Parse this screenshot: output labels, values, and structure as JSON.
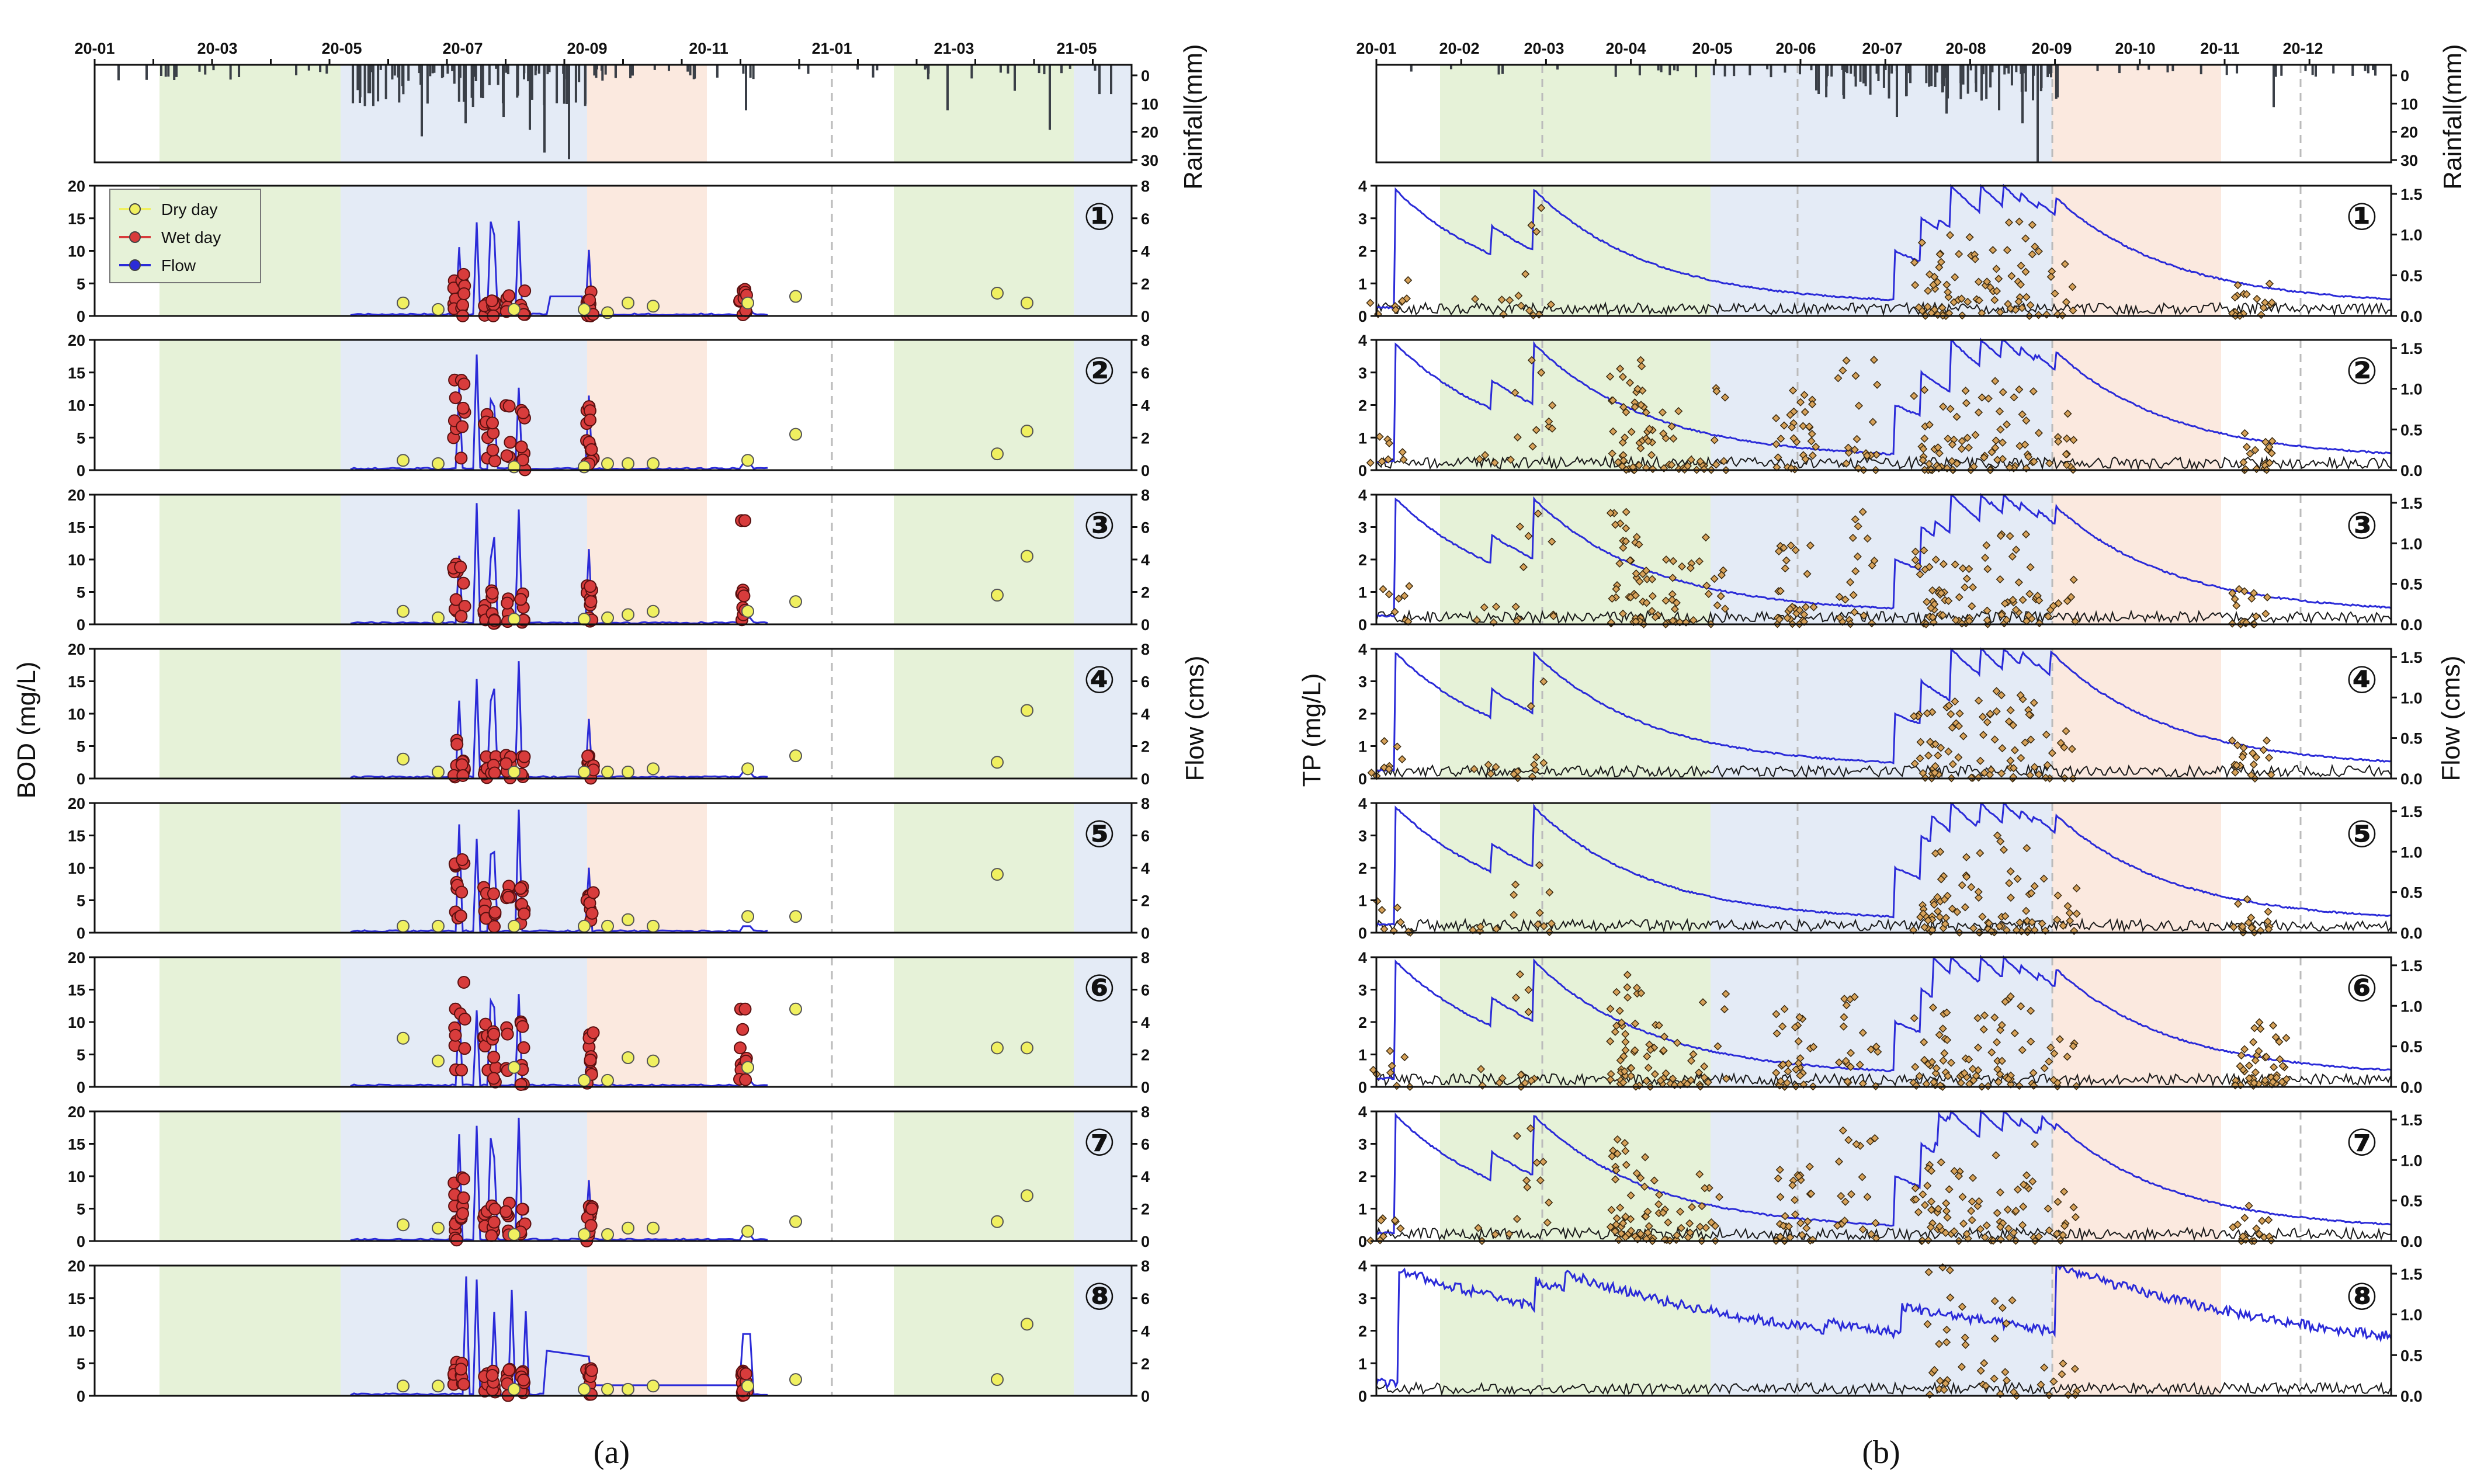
{
  "figure": {
    "captions": [
      "(a)",
      "(b)"
    ],
    "caption_letters": [
      "a",
      "b"
    ]
  },
  "colors": {
    "dry": "#f0f060",
    "wet": "#d83c3c",
    "flow": "#2b2bd8",
    "rain": "#3a3f47",
    "tp_marker": "#d7a25a",
    "season_spring": "#e6f2d8",
    "season_summer": "#e4ebf6",
    "season_autumn": "#fbe9df"
  },
  "chart_data": [
    {
      "panel": "a",
      "type": "scatter",
      "ylabel": "BOD (mg/L)",
      "y2label": "Flow (cms)",
      "rain_label": "Rainfall(mm)",
      "x_ticks": [
        "20-01",
        "20-03",
        "20-05",
        "20-07",
        "20-09",
        "20-11",
        "21-01",
        "21-03",
        "21-05"
      ],
      "rain_ticks": [
        "0",
        "10",
        "20",
        "30"
      ],
      "y_ticks": [
        "0",
        "5",
        "10",
        "15",
        "20"
      ],
      "y2_ticks": [
        "0",
        "2",
        "4",
        "6",
        "8"
      ],
      "ylim": [
        0,
        20
      ],
      "y2lim": [
        0,
        8
      ],
      "rain_ylim": [
        0,
        30
      ],
      "legend": [
        "Dry day",
        "Wet day",
        "Flow"
      ],
      "sites": [
        "①",
        "②",
        "③",
        "④",
        "⑤",
        "⑥",
        "⑦",
        "⑧"
      ]
    },
    {
      "panel": "b",
      "type": "scatter",
      "ylabel": "TP (mg/L)",
      "y2label": "Flow (cms)",
      "rain_label": "Rainfall(mm)",
      "x_ticks": [
        "20-01",
        "20-02",
        "20-03",
        "20-04",
        "20-05",
        "20-06",
        "20-07",
        "20-08",
        "20-09",
        "20-10",
        "20-11",
        "20-12"
      ],
      "rain_ticks": [
        "0",
        "10",
        "20",
        "30"
      ],
      "y_ticks": [
        "0",
        "1",
        "2",
        "3",
        "4"
      ],
      "y2_ticks": [
        "0.0",
        "0.5",
        "1.0",
        "1.5"
      ],
      "ylim": [
        0,
        4
      ],
      "y2lim": [
        0,
        1.6
      ],
      "rain_ylim": [
        0,
        30
      ],
      "sites": [
        "①",
        "②",
        "③",
        "④",
        "⑤",
        "⑥",
        "⑦",
        "⑧"
      ]
    }
  ]
}
